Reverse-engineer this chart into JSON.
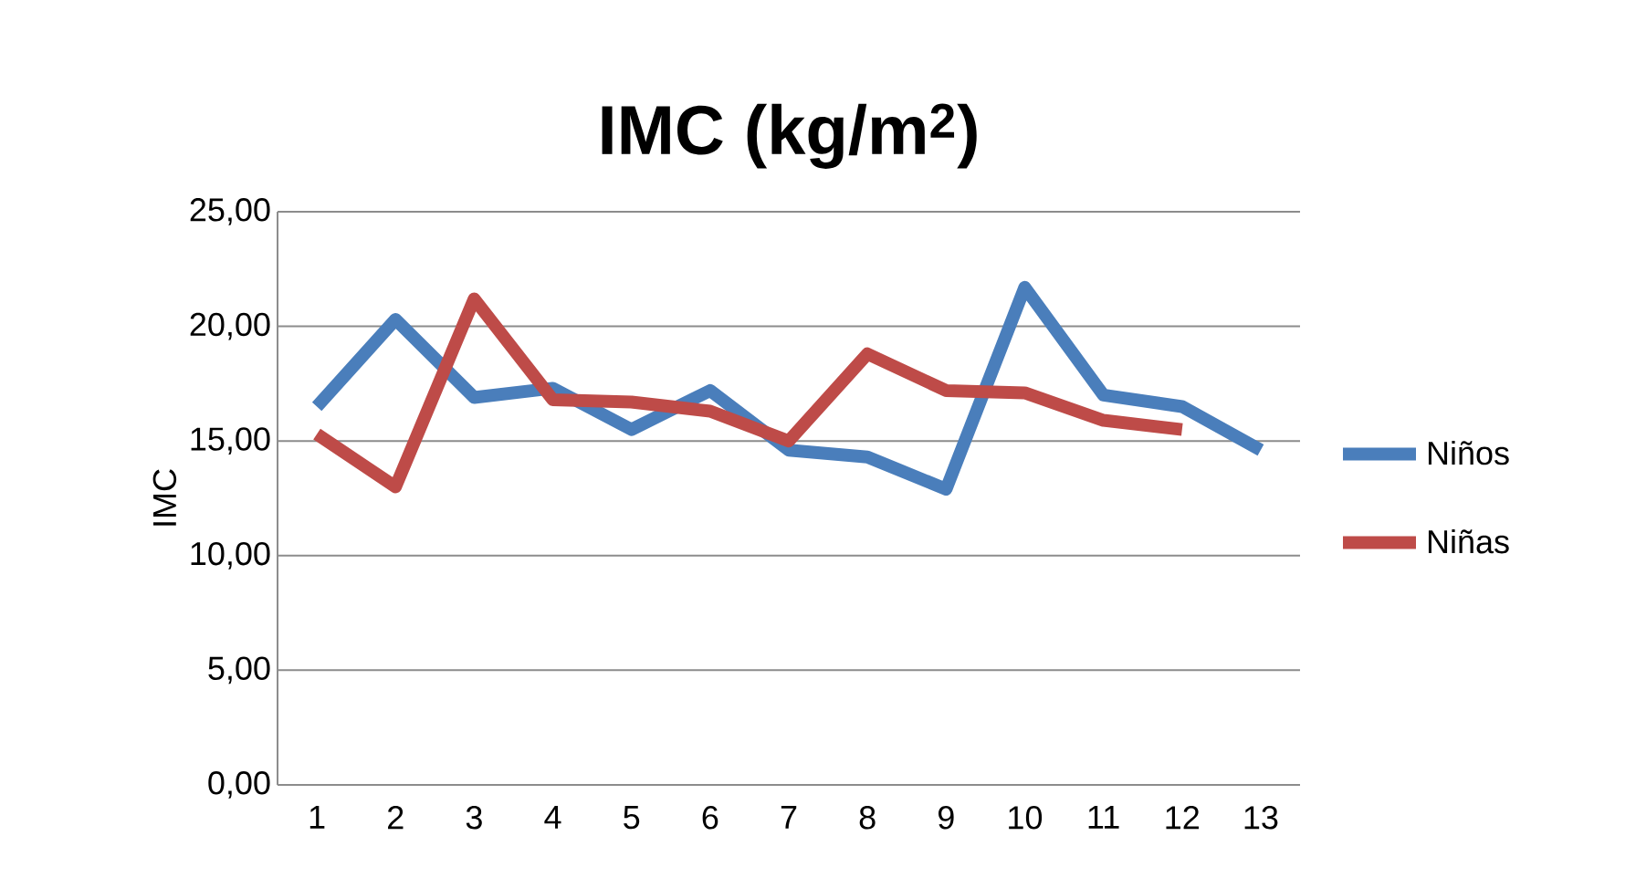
{
  "chart_data": {
    "type": "line",
    "title": "IMC (kg/m$^{2}$)",
    "ylabel": "IMC",
    "categories": [
      "1",
      "2",
      "3",
      "4",
      "5",
      "6",
      "7",
      "8",
      "9",
      "10",
      "11",
      "12",
      "13"
    ],
    "series": [
      {
        "name": "Niños",
        "color": "#4a7ebb",
        "values": [
          16.5,
          20.3,
          16.9,
          17.3,
          15.5,
          17.2,
          14.6,
          14.3,
          12.9,
          21.7,
          17.0,
          16.5,
          14.6
        ]
      },
      {
        "name": "Niñas",
        "color": "#be4b48",
        "values": [
          15.3,
          13.0,
          21.2,
          16.8,
          16.7,
          16.3,
          15.0,
          18.8,
          17.2,
          17.1,
          15.9,
          15.5,
          null
        ]
      }
    ],
    "ylim": [
      0,
      25
    ],
    "yticks": [
      {
        "value": 0,
        "label": "0,00"
      },
      {
        "value": 5,
        "label": "5,00"
      },
      {
        "value": 10,
        "label": "10,00"
      },
      {
        "value": 15,
        "label": "15,00"
      },
      {
        "value": 20,
        "label": "20,00"
      },
      {
        "value": 25,
        "label": "25,00"
      }
    ],
    "grid": "y",
    "legend": "right",
    "marker": "none",
    "line_style": "solid"
  }
}
